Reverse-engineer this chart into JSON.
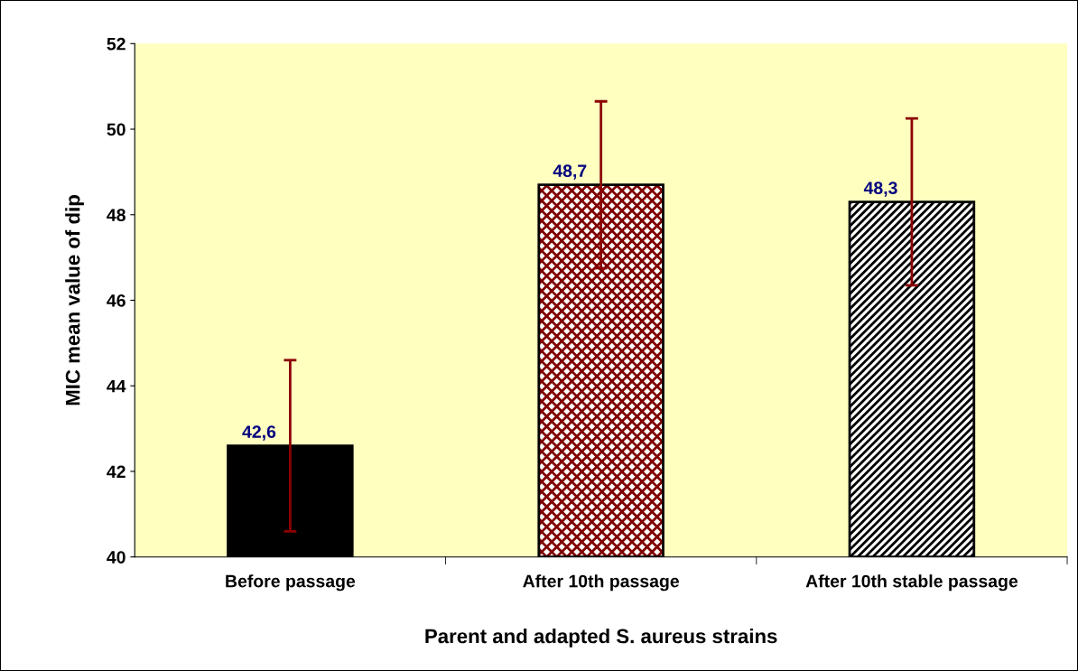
{
  "chart_data": {
    "type": "bar",
    "xlabel": "Parent and adapted S. aureus strains",
    "ylabel": "MIC mean value of dip",
    "categories": [
      "Before passage",
      "After 10th passage",
      "After 10th stable passage"
    ],
    "values": [
      42.6,
      48.7,
      48.3
    ],
    "colors": [
      "#000000",
      "#800000",
      "#000000"
    ],
    "errors": [
      2.0,
      1.95,
      1.95
    ],
    "value_labels": [
      "42,6",
      "48,7",
      "48,3"
    ],
    "ylim": [
      40,
      52
    ],
    "yticks": [
      40,
      42,
      44,
      46,
      48,
      50,
      52
    ],
    "grid": false,
    "legend": false
  }
}
